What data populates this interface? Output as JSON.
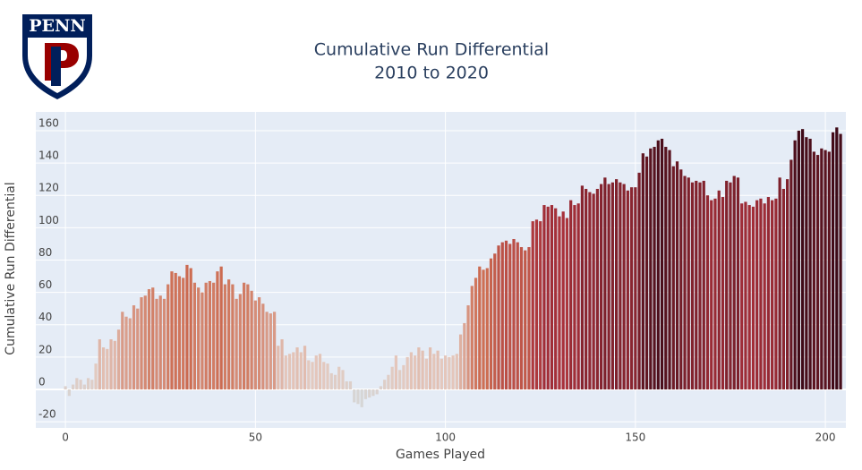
{
  "logo": {
    "text": "PENN"
  },
  "chart_data": {
    "type": "bar",
    "title": "Cumulative Run Differential",
    "subtitle": "2010 to 2020",
    "x_label": "Games Played",
    "y_label": "Cumulative Run Differential",
    "xlim": [
      -7.8,
      205.4
    ],
    "xticks": [
      0,
      50,
      100,
      150,
      200
    ],
    "ylim": [
      -23.8,
      171.6
    ],
    "yticks": [
      -20,
      0,
      20,
      40,
      60,
      80,
      100,
      120,
      140,
      160
    ],
    "grid": true,
    "colorscale": [
      [
        -11,
        "#d6d6d6"
      ],
      [
        20,
        "#e4c8bd"
      ],
      [
        75,
        "#cd6d52"
      ],
      [
        110,
        "#a8303a"
      ],
      [
        162,
        "#3d0916"
      ]
    ],
    "values": [
      2,
      -4,
      3,
      7,
      6,
      3,
      7,
      6,
      16,
      31,
      26,
      25,
      31,
      30,
      37,
      48,
      45,
      44,
      52,
      50,
      57,
      58,
      62,
      63,
      56,
      58,
      56,
      65,
      73,
      72,
      70,
      69,
      77,
      75,
      66,
      63,
      60,
      66,
      67,
      66,
      73,
      76,
      65,
      68,
      65,
      56,
      59,
      66,
      65,
      61,
      55,
      57,
      53,
      48,
      47,
      48,
      27,
      31,
      21,
      22,
      23,
      26,
      23,
      27,
      18,
      17,
      21,
      22,
      17,
      16,
      10,
      9,
      14,
      12,
      5,
      5,
      -8,
      -9,
      -11,
      -6,
      -5,
      -4,
      -3,
      2,
      6,
      9,
      14,
      21,
      12,
      15,
      20,
      23,
      21,
      26,
      24,
      19,
      26,
      22,
      24,
      19,
      21,
      20,
      21,
      22,
      34,
      41,
      52,
      64,
      69,
      76,
      74,
      75,
      81,
      84,
      89,
      91,
      92,
      90,
      93,
      91,
      88,
      86,
      88,
      104,
      105,
      104,
      114,
      113,
      114,
      112,
      107,
      110,
      106,
      117,
      114,
      115,
      126,
      124,
      122,
      121,
      124,
      127,
      131,
      127,
      128,
      130,
      128,
      127,
      123,
      125,
      125,
      134,
      146,
      144,
      149,
      150,
      154,
      155,
      150,
      148,
      138,
      141,
      136,
      132,
      131,
      128,
      129,
      128,
      129,
      120,
      117,
      118,
      123,
      119,
      129,
      128,
      132,
      131,
      115,
      116,
      114,
      113,
      117,
      118,
      115,
      119,
      117,
      118,
      131,
      124,
      130,
      142,
      154,
      160,
      161,
      156,
      155,
      147,
      145,
      149,
      148,
      147,
      159,
      162,
      158
    ]
  }
}
